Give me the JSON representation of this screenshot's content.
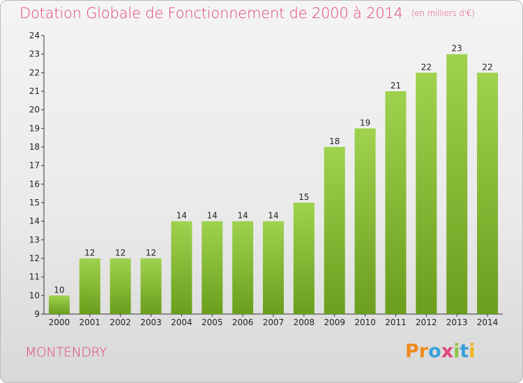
{
  "chart_data": {
    "type": "bar",
    "title": "Dotation Globale de Fonctionnement de 2000 à 2014",
    "subtitle": "(en milliers d'€)",
    "categories": [
      "2000",
      "2001",
      "2002",
      "2003",
      "2004",
      "2005",
      "2006",
      "2007",
      "2008",
      "2009",
      "2010",
      "2011",
      "2012",
      "2013",
      "2014"
    ],
    "values": [
      10,
      12,
      12,
      12,
      14,
      14,
      14,
      14,
      15,
      18,
      19,
      21,
      22,
      23,
      22
    ],
    "ylim": [
      9,
      24
    ],
    "yticks": [
      9,
      10,
      11,
      12,
      13,
      14,
      15,
      16,
      17,
      18,
      19,
      20,
      21,
      22,
      23,
      24
    ],
    "grid": false,
    "bar_color_top": "#9fd24f",
    "bar_color_bottom": "#6a9e1c"
  },
  "footer": {
    "town": "MONTENDRY",
    "logo_letters": [
      "P",
      "r",
      "o",
      "x",
      "i",
      "t",
      "i"
    ],
    "logo_colors": [
      "#f08a1c",
      "#f08a1c",
      "#3aa0d8",
      "#e0457b",
      "#8cc63f",
      "#3aa0d8",
      "#f0b41c"
    ]
  },
  "colors": {
    "accent": "#e0457b"
  }
}
